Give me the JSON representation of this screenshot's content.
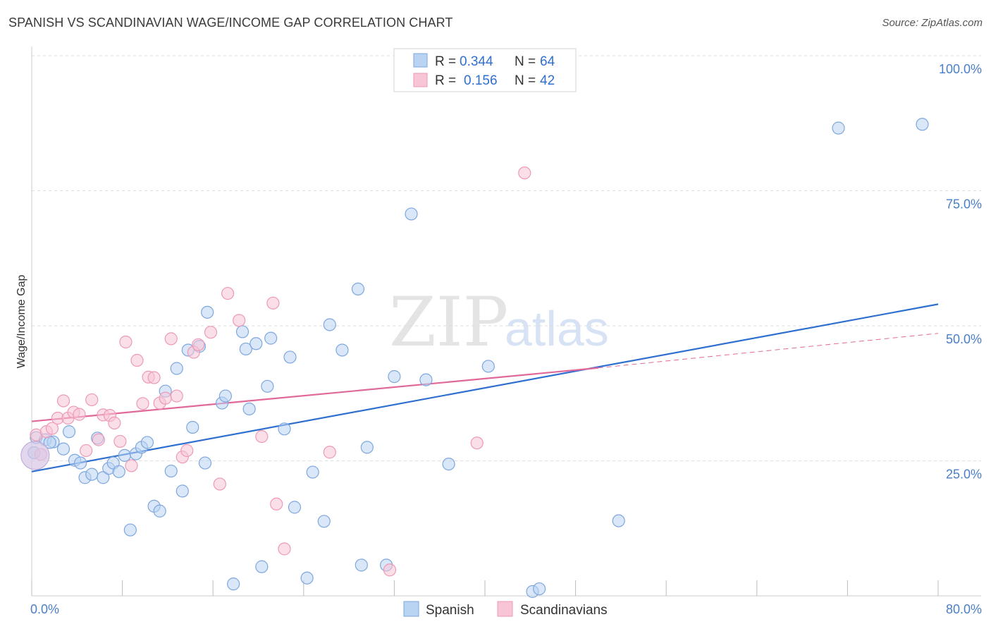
{
  "title": "SPANISH VS SCANDINAVIAN WAGE/INCOME GAP CORRELATION CHART",
  "source": "Source: ZipAtlas.com",
  "watermark": {
    "zip": "ZIP",
    "atlas": "atlas"
  },
  "colors": {
    "spanish_fill": "#b9d3f2",
    "spanish_stroke": "#7ea7de",
    "spanish_line": "#2f6fcf",
    "scand_fill": "#f7c5d5",
    "scand_stroke": "#ec9ab5",
    "scand_line": "#e0699a",
    "value_blue": "#2f6fcf",
    "grid": "#dddddd"
  },
  "legend_top": {
    "rows": [
      {
        "r_label": "R =",
        "r_value": "0.344",
        "n_label": "N =",
        "n_value": "64"
      },
      {
        "r_label": "R =",
        "r_value": "0.156",
        "n_label": "N =",
        "n_value": "42"
      }
    ]
  },
  "chart_data": {
    "type": "scatter",
    "title": "SPANISH VS SCANDINAVIAN WAGE/INCOME GAP CORRELATION CHART",
    "xlabel": "",
    "ylabel": "Wage/Income Gap",
    "xlim": [
      0,
      80
    ],
    "ylim": [
      0,
      100
    ],
    "x_tick_labels": [
      "0.0%",
      "80.0%"
    ],
    "y_ticks": [
      25,
      50,
      75,
      100
    ],
    "y_tick_labels": [
      "25.0%",
      "50.0%",
      "75.0%",
      "100.0%"
    ],
    "grid": true,
    "legend_position": "bottom",
    "series": [
      {
        "name": "Spanish",
        "r": 0.344,
        "n": 64,
        "trend": {
          "x": [
            0,
            80
          ],
          "y": [
            23.0,
            54.0
          ]
        },
        "points": [
          [
            0.4,
            29.3
          ],
          [
            1.2,
            28.9
          ],
          [
            1.9,
            28.5
          ],
          [
            2.8,
            27.2
          ],
          [
            3.3,
            30.4
          ],
          [
            3.8,
            25.1
          ],
          [
            4.3,
            24.6
          ],
          [
            4.7,
            21.9
          ],
          [
            5.3,
            22.5
          ],
          [
            5.8,
            29.2
          ],
          [
            6.3,
            21.9
          ],
          [
            6.8,
            23.6
          ],
          [
            7.2,
            24.6
          ],
          [
            7.7,
            23.0
          ],
          [
            8.2,
            26.0
          ],
          [
            8.7,
            12.2
          ],
          [
            9.2,
            26.3
          ],
          [
            9.7,
            27.5
          ],
          [
            10.2,
            28.4
          ],
          [
            10.8,
            16.6
          ],
          [
            11.3,
            15.7
          ],
          [
            11.8,
            37.9
          ],
          [
            12.3,
            23.1
          ],
          [
            12.8,
            42.1
          ],
          [
            13.3,
            19.4
          ],
          [
            13.8,
            45.5
          ],
          [
            14.2,
            31.2
          ],
          [
            14.8,
            46.2
          ],
          [
            15.3,
            24.6
          ],
          [
            15.5,
            52.5
          ],
          [
            16.8,
            35.7
          ],
          [
            17.1,
            37.0
          ],
          [
            17.8,
            2.2
          ],
          [
            18.6,
            48.9
          ],
          [
            18.9,
            45.7
          ],
          [
            19.2,
            34.6
          ],
          [
            19.8,
            46.7
          ],
          [
            20.3,
            5.4
          ],
          [
            20.8,
            38.8
          ],
          [
            21.1,
            47.7
          ],
          [
            22.3,
            30.9
          ],
          [
            22.8,
            44.2
          ],
          [
            23.2,
            16.4
          ],
          [
            24.3,
            3.3
          ],
          [
            24.8,
            22.9
          ],
          [
            25.8,
            13.8
          ],
          [
            26.3,
            50.2
          ],
          [
            27.4,
            45.5
          ],
          [
            28.8,
            56.8
          ],
          [
            29.1,
            5.7
          ],
          [
            29.6,
            27.5
          ],
          [
            31.3,
            5.7
          ],
          [
            32.0,
            40.6
          ],
          [
            33.5,
            70.7
          ],
          [
            34.8,
            40.0
          ],
          [
            36.8,
            24.4
          ],
          [
            40.3,
            42.5
          ],
          [
            44.2,
            0.8
          ],
          [
            44.8,
            1.3
          ],
          [
            51.8,
            13.9
          ],
          [
            71.2,
            86.6
          ],
          [
            78.6,
            87.3
          ],
          [
            0.2,
            26.5
          ],
          [
            1.6,
            28.4
          ]
        ]
      },
      {
        "name": "Scandinavians",
        "r": 0.156,
        "n": 42,
        "trend": {
          "x": [
            0,
            50
          ],
          "y": [
            32.3,
            42.2
          ]
        },
        "trend_ext": {
          "x": [
            50,
            80
          ],
          "y": [
            42.2,
            48.6
          ]
        },
        "points": [
          [
            0.4,
            29.8
          ],
          [
            0.8,
            26.2
          ],
          [
            1.3,
            30.4
          ],
          [
            1.8,
            31.0
          ],
          [
            2.3,
            32.9
          ],
          [
            2.8,
            36.1
          ],
          [
            3.2,
            32.9
          ],
          [
            3.7,
            34.0
          ],
          [
            4.2,
            33.6
          ],
          [
            4.8,
            26.9
          ],
          [
            5.3,
            36.3
          ],
          [
            5.9,
            28.9
          ],
          [
            6.3,
            33.5
          ],
          [
            6.9,
            33.4
          ],
          [
            7.3,
            32.0
          ],
          [
            7.8,
            28.6
          ],
          [
            8.3,
            47.0
          ],
          [
            8.8,
            24.1
          ],
          [
            9.3,
            43.6
          ],
          [
            9.8,
            35.6
          ],
          [
            10.3,
            40.5
          ],
          [
            10.8,
            40.4
          ],
          [
            11.3,
            35.7
          ],
          [
            11.8,
            36.6
          ],
          [
            12.3,
            47.6
          ],
          [
            12.8,
            37.0
          ],
          [
            13.3,
            25.7
          ],
          [
            13.7,
            26.9
          ],
          [
            14.3,
            45.1
          ],
          [
            14.7,
            46.5
          ],
          [
            15.8,
            48.8
          ],
          [
            16.6,
            20.7
          ],
          [
            17.3,
            56.0
          ],
          [
            18.3,
            51.0
          ],
          [
            20.3,
            29.5
          ],
          [
            21.3,
            54.2
          ],
          [
            21.6,
            17.0
          ],
          [
            22.3,
            8.7
          ],
          [
            26.3,
            26.6
          ],
          [
            31.6,
            4.8
          ],
          [
            39.3,
            28.3
          ],
          [
            43.5,
            78.3
          ]
        ]
      }
    ]
  },
  "legend_bottom": {
    "items": [
      "Spanish",
      "Scandinavians"
    ]
  }
}
